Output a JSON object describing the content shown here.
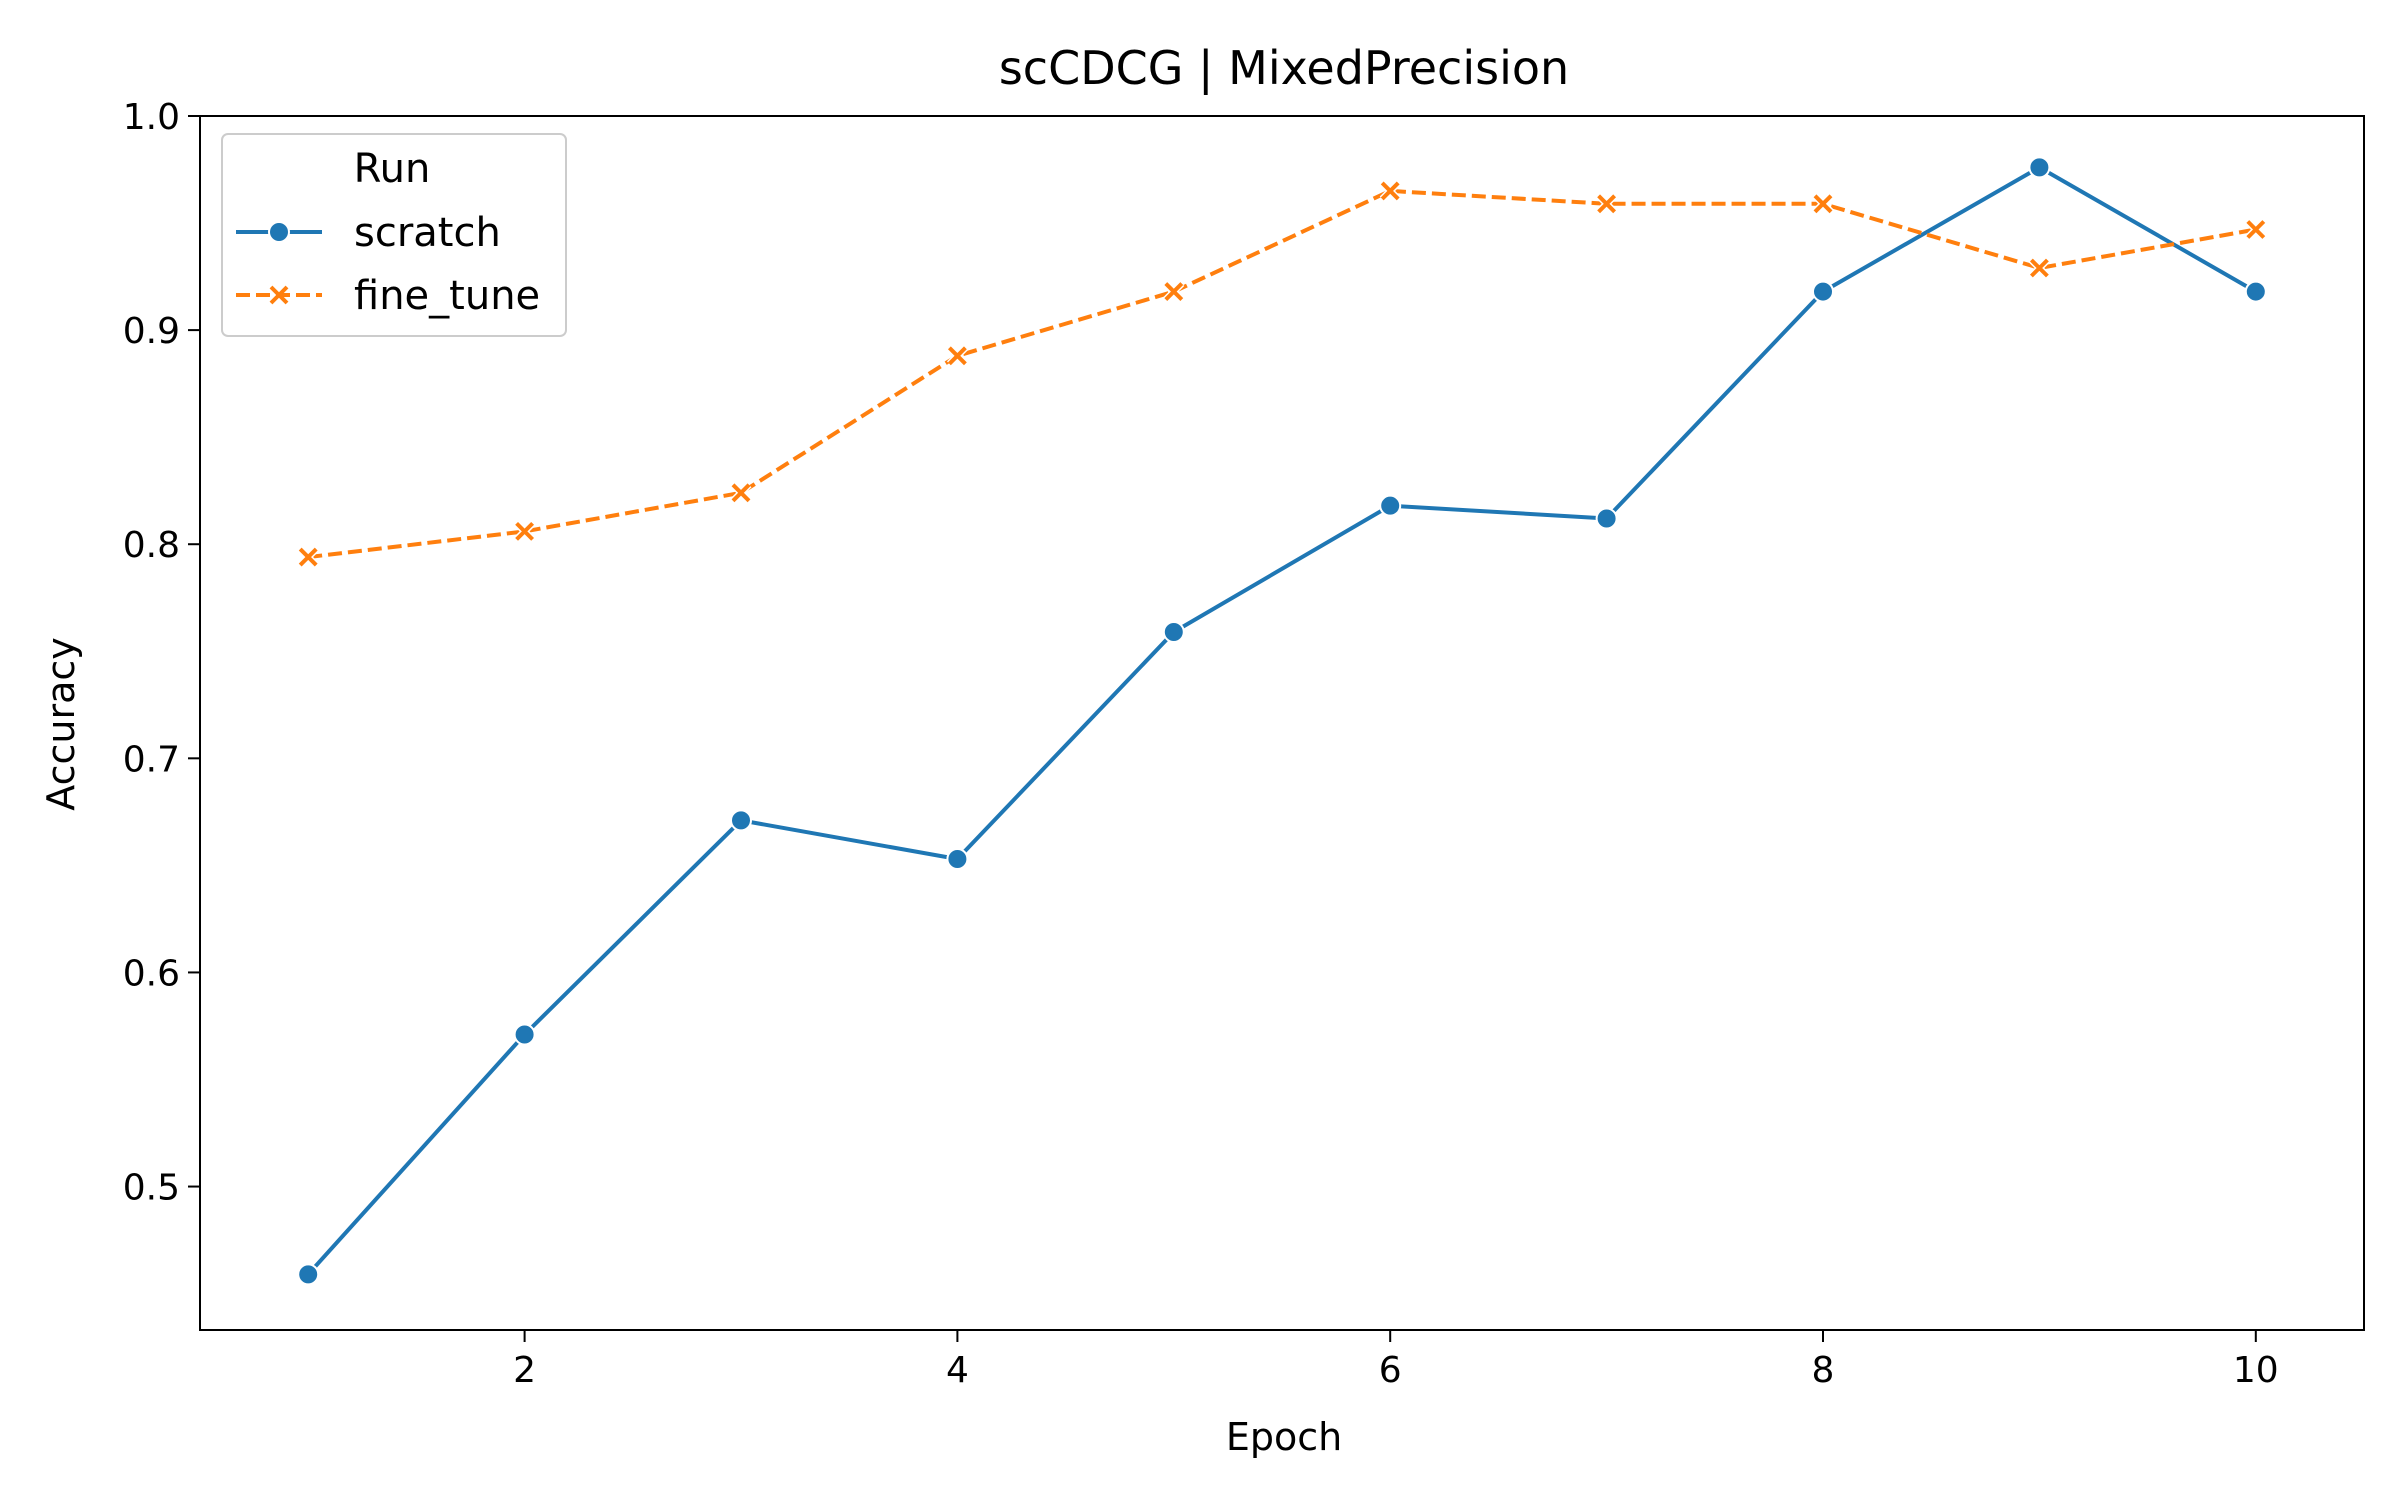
{
  "chart_data": {
    "type": "line",
    "title": "scCDCG | MixedPrecision",
    "xlabel": "Epoch",
    "ylabel": "Accuracy",
    "x": [
      1,
      2,
      3,
      4,
      5,
      6,
      7,
      8,
      9,
      10
    ],
    "xlim": [
      0.5,
      10.5
    ],
    "ylim": [
      0.433,
      1.0
    ],
    "xticks": [
      2,
      4,
      6,
      8,
      10
    ],
    "xtick_labels": [
      "2",
      "4",
      "6",
      "8",
      "10"
    ],
    "yticks": [
      0.5,
      0.6,
      0.7,
      0.8,
      0.9,
      1.0
    ],
    "ytick_labels": [
      "0.5",
      "0.6",
      "0.7",
      "0.8",
      "0.9",
      "1.0"
    ],
    "grid": false,
    "legend": {
      "title": "Run",
      "placement": "top-left"
    },
    "series": [
      {
        "name": "scratch",
        "color": "#1f77b4",
        "marker": "circle",
        "linestyle": "solid",
        "values": [
          0.459,
          0.571,
          0.671,
          0.653,
          0.759,
          0.818,
          0.812,
          0.918,
          0.976,
          0.918
        ]
      },
      {
        "name": "fine_tune",
        "color": "#ff7f0e",
        "marker": "x",
        "linestyle": "dashed",
        "values": [
          0.794,
          0.806,
          0.824,
          0.888,
          0.918,
          0.965,
          0.959,
          0.959,
          0.929,
          0.947
        ]
      }
    ]
  }
}
